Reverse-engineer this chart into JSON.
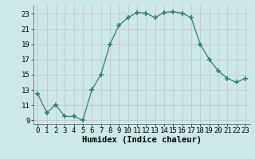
{
  "x": [
    0,
    1,
    2,
    3,
    4,
    5,
    6,
    7,
    8,
    9,
    10,
    11,
    12,
    13,
    14,
    15,
    16,
    17,
    18,
    19,
    20,
    21,
    22,
    23
  ],
  "y": [
    12.5,
    10.0,
    11.0,
    9.5,
    9.5,
    9.0,
    13.0,
    15.0,
    19.0,
    21.5,
    22.5,
    23.2,
    23.1,
    22.5,
    23.2,
    23.3,
    23.1,
    22.5,
    19.0,
    17.0,
    15.5,
    14.5,
    14.0,
    14.5
  ],
  "xlabel": "Humidex (Indice chaleur)",
  "ylabel": "",
  "xlim": [
    -0.5,
    23.5
  ],
  "ylim": [
    8.5,
    24.2
  ],
  "yticks": [
    9,
    11,
    13,
    15,
    17,
    19,
    21,
    23
  ],
  "xticks": [
    0,
    1,
    2,
    3,
    4,
    5,
    6,
    7,
    8,
    9,
    10,
    11,
    12,
    13,
    14,
    15,
    16,
    17,
    18,
    19,
    20,
    21,
    22,
    23
  ],
  "line_color": "#2e7d6e",
  "marker": "+",
  "marker_size": 4,
  "bg_color": "#cce8e8",
  "grid_color": "#b0d8d8",
  "label_fontsize": 7.5,
  "tick_fontsize": 6.5
}
